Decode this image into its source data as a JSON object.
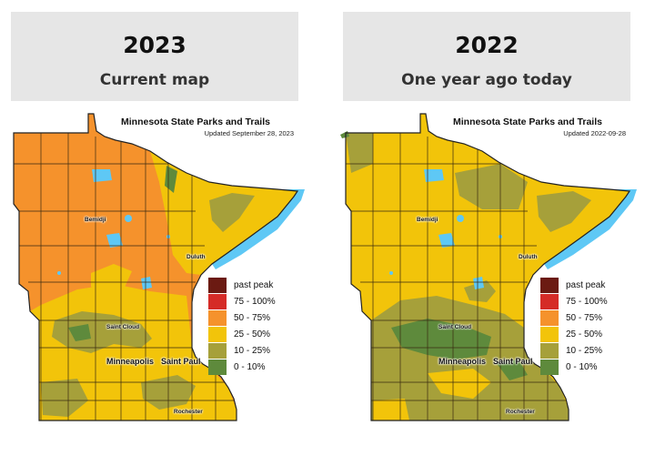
{
  "panels": [
    {
      "year": "2023",
      "subtitle": "Current map",
      "map_title": "Minnesota State Parks and Trails",
      "updated": "Updated September 28, 2023"
    },
    {
      "year": "2022",
      "subtitle": "One year ago today",
      "map_title": "Minnesota State Parks and Trails",
      "updated": "Updated 2022-09-28"
    }
  ],
  "cities": {
    "bemidji": "Bemidji",
    "duluth": "Duluth",
    "saint_cloud": "Saint Cloud",
    "minneapolis": "Minneapolis",
    "saint_paul": "Saint Paul",
    "rochester": "Rochester"
  },
  "legend": [
    {
      "label": "past peak",
      "color": "#6b1a12"
    },
    {
      "label": "75 - 100%",
      "color": "#d52b27"
    },
    {
      "label": "50 - 75%",
      "color": "#f5922c"
    },
    {
      "label": "25 - 50%",
      "color": "#f2c40a"
    },
    {
      "label": "10 - 25%",
      "color": "#a6a03a"
    },
    {
      "label": "0 - 10%",
      "color": "#5e8a3c"
    }
  ],
  "colors": {
    "header_bg": "#e6e6e6",
    "water": "#5ec8f5",
    "county_line": "#3a2a10"
  }
}
